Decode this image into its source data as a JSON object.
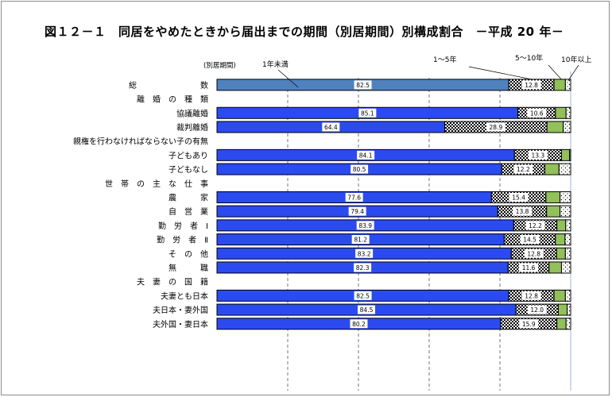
{
  "title": "図１２－１　同居をやめたときから届出までの期間（別居期間）別構成割合　－平成 20 年－",
  "chart_data": {
    "type": "stacked-bar-horizontal",
    "axis_caption": "(別居期間)",
    "series": [
      {
        "name": "1年未満"
      },
      {
        "name": "1～5年"
      },
      {
        "name": "5～10年"
      },
      {
        "name": "10年以上"
      }
    ],
    "rows": [
      {
        "label": "総　　　　　　　　数",
        "kind": "bar",
        "color": "#4f81bd",
        "values": [
          82.5,
          12.8,
          3.2,
          1.5
        ]
      },
      {
        "label": "離　婚　の　種　類",
        "kind": "header"
      },
      {
        "label": "協議離婚",
        "kind": "bar",
        "color": "#2b4bf0",
        "values": [
          85.1,
          10.6,
          3.0,
          1.3
        ]
      },
      {
        "label": "裁判離婚",
        "kind": "bar",
        "color": "#2b4bf0",
        "values": [
          64.4,
          28.9,
          4.6,
          2.1
        ]
      },
      {
        "label": "親権を行わなければならない子の有無",
        "kind": "header"
      },
      {
        "label": "子どもあり",
        "kind": "bar",
        "color": "#2b4bf0",
        "values": [
          84.1,
          13.3,
          2.3,
          0.3
        ]
      },
      {
        "label": "子どもなし",
        "kind": "bar",
        "color": "#2b4bf0",
        "values": [
          80.5,
          12.2,
          4.0,
          3.3
        ]
      },
      {
        "label": "世　帯　の　主　な　仕　事",
        "kind": "header"
      },
      {
        "label": "農　　　家",
        "kind": "bar",
        "color": "#2b4bf0",
        "values": [
          77.6,
          15.4,
          4.0,
          3.0
        ]
      },
      {
        "label": "自　営　業",
        "kind": "bar",
        "color": "#2b4bf0",
        "values": [
          79.4,
          13.8,
          3.8,
          3.0
        ]
      },
      {
        "label": "勤　労　者　Ⅰ",
        "kind": "bar",
        "color": "#2b4bf0",
        "values": [
          83.9,
          12.2,
          2.5,
          1.4
        ]
      },
      {
        "label": "勤　労　者　Ⅱ",
        "kind": "bar",
        "color": "#2b4bf0",
        "values": [
          81.2,
          14.5,
          2.7,
          1.6
        ]
      },
      {
        "label": "そ　の　他",
        "kind": "bar",
        "color": "#2b4bf0",
        "values": [
          83.2,
          12.8,
          2.5,
          1.5
        ]
      },
      {
        "label": "無　　　職",
        "kind": "bar",
        "color": "#2b4bf0",
        "values": [
          82.3,
          11.6,
          3.5,
          2.6
        ]
      },
      {
        "label": "夫　妻　の　国　籍",
        "kind": "header"
      },
      {
        "label": "夫妻とも日本",
        "kind": "bar",
        "color": "#2b4bf0",
        "values": [
          82.5,
          12.8,
          3.2,
          1.5
        ]
      },
      {
        "label": "夫日本・妻外国",
        "kind": "bar",
        "color": "#2b4bf0",
        "values": [
          84.5,
          12.0,
          2.5,
          1.0
        ]
      },
      {
        "label": "夫外国・妻日本",
        "kind": "bar",
        "color": "#2b4bf0",
        "values": [
          80.2,
          15.9,
          2.6,
          1.3
        ]
      }
    ],
    "labeled_segments": [
      0,
      1
    ],
    "xlim": [
      0,
      100
    ],
    "grid": "vertical dashed"
  }
}
